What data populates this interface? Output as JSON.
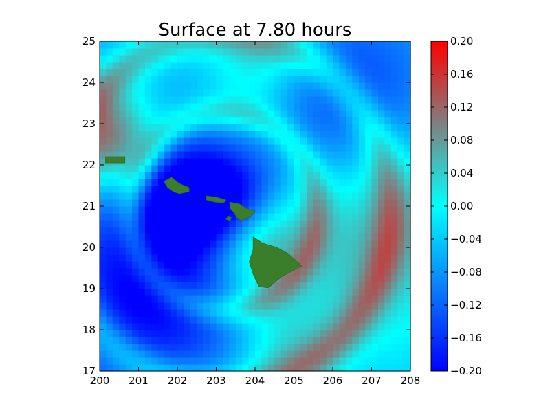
{
  "chart_data": {
    "type": "heatmap",
    "title": "Surface at 7.80 hours",
    "xlabel": "",
    "ylabel": "",
    "xlim": [
      200,
      208
    ],
    "ylim": [
      17,
      25
    ],
    "x_ticks": [
      "200",
      "201",
      "202",
      "203",
      "204",
      "205",
      "206",
      "207",
      "208"
    ],
    "y_ticks": [
      "17",
      "18",
      "19",
      "20",
      "21",
      "22",
      "23",
      "24",
      "25"
    ],
    "colorbar": {
      "range": [
        -0.2,
        0.2
      ],
      "tick_labels": [
        "0.20",
        "0.16",
        "0.12",
        "0.08",
        "0.04",
        "0.00",
        "−0.04",
        "−0.08",
        "−0.12",
        "−0.16",
        "−0.20"
      ],
      "tick_values": [
        0.2,
        0.16,
        0.12,
        0.08,
        0.04,
        0.0,
        -0.04,
        -0.08,
        -0.12,
        -0.16,
        -0.2
      ],
      "colors": {
        "low": "#0000ff",
        "mid_low": "#0a7cff",
        "zero": "#00ffff",
        "mid_high": "#808080",
        "high": "#ff0000"
      }
    },
    "land_color": "#3a7d2a",
    "grid": false,
    "grid_resolution_deg": 0.1667,
    "field_features": [
      {
        "kind": "depression",
        "center": [
          202.3,
          21.2
        ],
        "amplitude": -0.2
      },
      {
        "kind": "depression",
        "center": [
          203.6,
          21.0
        ],
        "amplitude": -0.2
      },
      {
        "kind": "depression",
        "center": [
          201.3,
          19.0
        ],
        "amplitude": -0.17
      },
      {
        "kind": "elevation",
        "center": [
          200.2,
          22.6
        ],
        "amplitude": 0.2
      },
      {
        "kind": "elevation",
        "center": [
          203.9,
          20.3
        ],
        "amplitude": 0.2
      },
      {
        "kind": "elevation",
        "center": [
          207.0,
          20.4
        ],
        "amplitude": 0.13
      },
      {
        "kind": "elevation",
        "center": [
          204.0,
          24.4
        ],
        "amplitude": 0.09
      },
      {
        "kind": "elevation",
        "center": [
          204.7,
          17.5
        ],
        "amplitude": 0.08
      },
      {
        "kind": "trough",
        "center": [
          206.5,
          23.5
        ],
        "amplitude": -0.13
      }
    ],
    "islands": [
      {
        "name": "",
        "points": [
          [
            200.15,
            22.2
          ],
          [
            200.65,
            22.2
          ],
          [
            200.65,
            22.05
          ],
          [
            200.15,
            22.05
          ]
        ]
      },
      {
        "name": "",
        "points": [
          [
            201.65,
            21.6
          ],
          [
            201.85,
            21.7
          ],
          [
            202.05,
            21.55
          ],
          [
            202.3,
            21.45
          ],
          [
            202.3,
            21.35
          ],
          [
            202.05,
            21.3
          ],
          [
            201.9,
            21.35
          ],
          [
            201.75,
            21.45
          ]
        ]
      },
      {
        "name": "",
        "points": [
          [
            202.75,
            21.25
          ],
          [
            203.0,
            21.22
          ],
          [
            203.25,
            21.15
          ],
          [
            203.2,
            21.08
          ],
          [
            202.95,
            21.1
          ],
          [
            202.75,
            21.15
          ]
        ]
      },
      {
        "name": "",
        "points": [
          [
            203.35,
            21.1
          ],
          [
            203.6,
            21.05
          ],
          [
            203.75,
            20.95
          ],
          [
            204.0,
            20.88
          ],
          [
            203.9,
            20.75
          ],
          [
            203.65,
            20.65
          ],
          [
            203.55,
            20.7
          ],
          [
            203.45,
            20.85
          ],
          [
            203.35,
            20.95
          ]
        ]
      },
      {
        "name": "",
        "points": [
          [
            203.3,
            20.75
          ],
          [
            203.4,
            20.72
          ],
          [
            203.35,
            20.65
          ],
          [
            203.25,
            20.68
          ]
        ]
      },
      {
        "name": "",
        "points": [
          [
            203.95,
            20.25
          ],
          [
            204.2,
            20.1
          ],
          [
            204.55,
            20.0
          ],
          [
            204.85,
            19.85
          ],
          [
            205.2,
            19.55
          ],
          [
            204.95,
            19.42
          ],
          [
            204.7,
            19.3
          ],
          [
            204.5,
            19.15
          ],
          [
            204.35,
            19.02
          ],
          [
            204.1,
            19.05
          ],
          [
            203.95,
            19.35
          ],
          [
            203.85,
            19.65
          ],
          [
            203.95,
            19.95
          ]
        ]
      }
    ]
  }
}
